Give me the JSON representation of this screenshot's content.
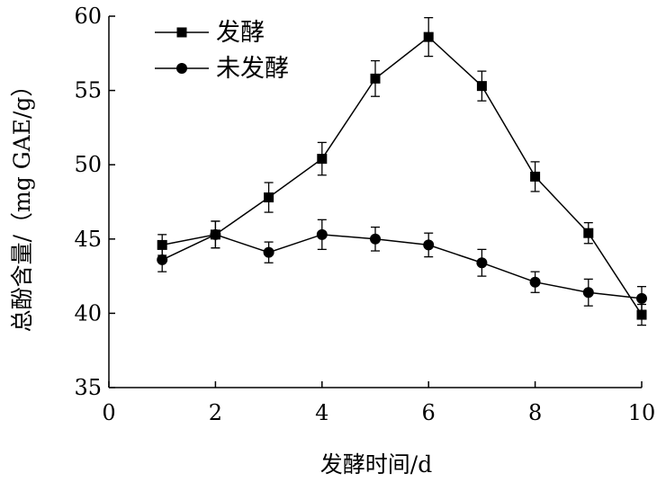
{
  "chart_data": {
    "type": "line",
    "xlabel": "发酵时间/d",
    "ylabel": "总酚含量/（mg GAE/g）",
    "xlim": [
      0,
      10
    ],
    "ylim": [
      35,
      60
    ],
    "x_ticks": [
      0,
      2,
      4,
      6,
      8,
      10
    ],
    "y_ticks": [
      35,
      40,
      45,
      50,
      55,
      60
    ],
    "legend_position": "top-left",
    "series": [
      {
        "name": "发酵",
        "marker": "square",
        "color": "#000000",
        "x": [
          1,
          2,
          3,
          4,
          5,
          6,
          7,
          8,
          9,
          10
        ],
        "y": [
          44.6,
          45.3,
          47.8,
          50.4,
          55.8,
          58.6,
          55.3,
          49.2,
          45.4,
          39.9
        ],
        "error": [
          0.7,
          0.9,
          1.0,
          1.1,
          1.2,
          1.3,
          1.0,
          1.0,
          0.7,
          0.7
        ]
      },
      {
        "name": "未发酵",
        "marker": "circle",
        "color": "#000000",
        "x": [
          1,
          2,
          3,
          4,
          5,
          6,
          7,
          8,
          9,
          10
        ],
        "y": [
          43.6,
          45.3,
          44.1,
          45.3,
          45.0,
          44.6,
          43.4,
          42.1,
          41.4,
          41.0
        ],
        "error": [
          0.8,
          0.9,
          0.7,
          1.0,
          0.8,
          0.8,
          0.9,
          0.7,
          0.9,
          0.8
        ]
      }
    ]
  }
}
